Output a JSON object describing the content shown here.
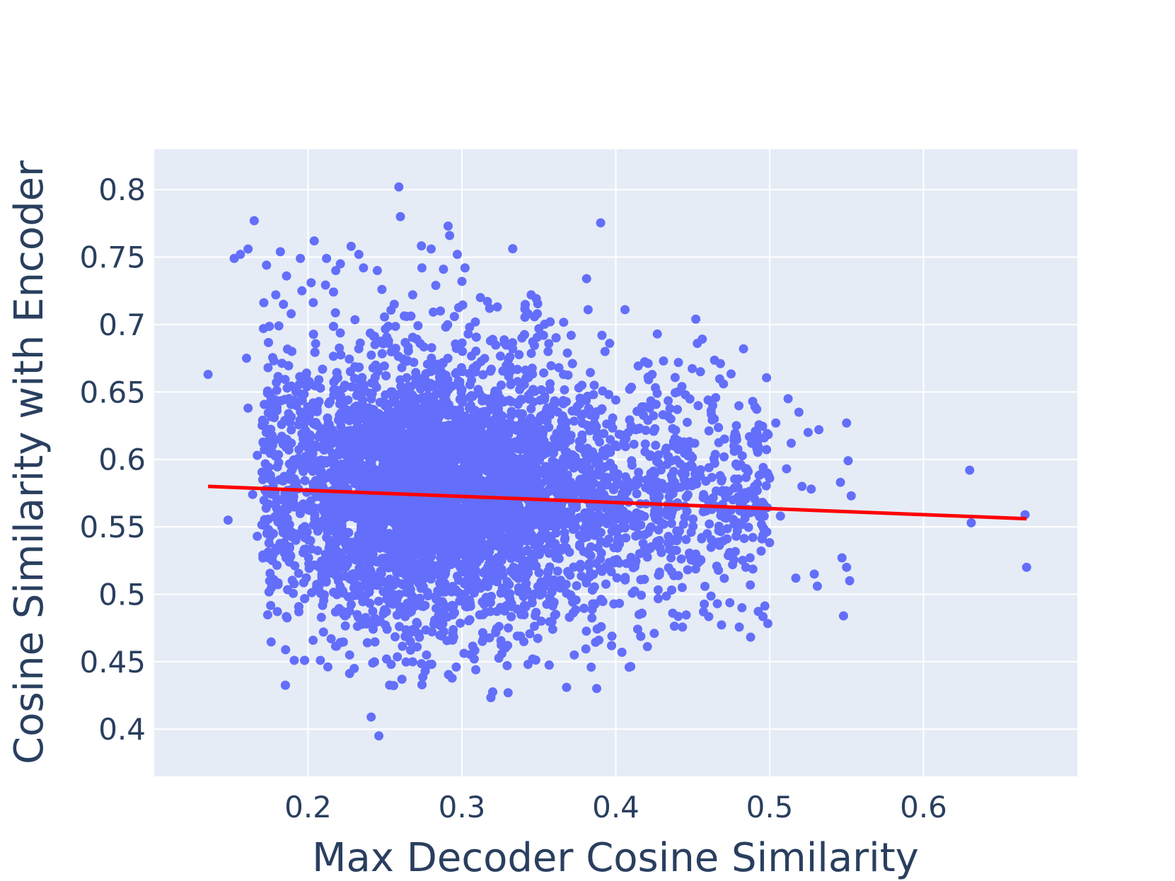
{
  "colors": {
    "plot_background": "#e5ecf6",
    "grid": "#ffffff",
    "points": "#636efa",
    "fit_line": "#ff0000",
    "text": "#2a3f5f"
  },
  "chart_data": {
    "type": "scatter",
    "title": "",
    "xlabel": "Max Decoder Cosine Similarity",
    "ylabel": "Cosine Similarity with Encoder",
    "xlim": [
      0.1,
      0.7
    ],
    "ylim": [
      0.365,
      0.83
    ],
    "grid": true,
    "x_ticks": [
      {
        "value": 0.2,
        "label": "0.2"
      },
      {
        "value": 0.3,
        "label": "0.3"
      },
      {
        "value": 0.4,
        "label": "0.4"
      },
      {
        "value": 0.5,
        "label": "0.5"
      },
      {
        "value": 0.6,
        "label": "0.6"
      }
    ],
    "y_ticks": [
      {
        "value": 0.4,
        "label": "0.4"
      },
      {
        "value": 0.45,
        "label": "0.45"
      },
      {
        "value": 0.5,
        "label": "0.5"
      },
      {
        "value": 0.55,
        "label": "0.55"
      },
      {
        "value": 0.6,
        "label": "0.6"
      },
      {
        "value": 0.65,
        "label": "0.65"
      },
      {
        "value": 0.7,
        "label": "0.7"
      },
      {
        "value": 0.75,
        "label": "0.75"
      },
      {
        "value": 0.8,
        "label": "0.8"
      }
    ],
    "series": [
      {
        "type": "scatter",
        "points": [
          [
            0.135,
            0.663
          ],
          [
            0.148,
            0.555
          ],
          [
            0.152,
            0.749
          ],
          [
            0.156,
            0.752
          ],
          [
            0.161,
            0.756
          ],
          [
            0.165,
            0.777
          ],
          [
            0.16,
            0.675
          ],
          [
            0.161,
            0.638
          ],
          [
            0.164,
            0.574
          ],
          [
            0.167,
            0.603
          ],
          [
            0.167,
            0.543
          ],
          [
            0.171,
            0.697
          ],
          [
            0.173,
            0.744
          ],
          [
            0.174,
            0.668
          ],
          [
            0.176,
            0.64
          ],
          [
            0.178,
            0.631
          ],
          [
            0.179,
            0.722
          ],
          [
            0.181,
            0.699
          ],
          [
            0.182,
            0.754
          ],
          [
            0.184,
            0.715
          ],
          [
            0.186,
            0.736
          ],
          [
            0.189,
            0.708
          ],
          [
            0.191,
            0.451
          ],
          [
            0.194,
            0.487
          ],
          [
            0.195,
            0.749
          ],
          [
            0.196,
            0.725
          ],
          [
            0.199,
            0.664
          ],
          [
            0.202,
            0.731
          ],
          [
            0.204,
            0.762
          ],
          [
            0.208,
            0.451
          ],
          [
            0.21,
            0.472
          ],
          [
            0.212,
            0.749
          ],
          [
            0.215,
            0.467
          ],
          [
            0.218,
            0.74
          ],
          [
            0.221,
            0.745
          ],
          [
            0.224,
            0.484
          ],
          [
            0.227,
            0.455
          ],
          [
            0.228,
            0.758
          ],
          [
            0.23,
            0.445
          ],
          [
            0.233,
            0.752
          ],
          [
            0.236,
            0.742
          ],
          [
            0.238,
            0.478
          ],
          [
            0.241,
            0.409
          ],
          [
            0.242,
            0.449
          ],
          [
            0.245,
            0.74
          ],
          [
            0.246,
            0.395
          ],
          [
            0.248,
            0.726
          ],
          [
            0.251,
            0.452
          ],
          [
            0.254,
            0.448
          ],
          [
            0.256,
            0.715
          ],
          [
            0.259,
            0.802
          ],
          [
            0.26,
            0.78
          ],
          [
            0.261,
            0.437
          ],
          [
            0.264,
            0.706
          ],
          [
            0.266,
            0.494
          ],
          [
            0.268,
            0.722
          ],
          [
            0.271,
            0.478
          ],
          [
            0.274,
            0.742
          ],
          [
            0.277,
            0.455
          ],
          [
            0.28,
            0.756
          ],
          [
            0.283,
            0.729
          ],
          [
            0.286,
            0.71
          ],
          [
            0.288,
            0.741
          ],
          [
            0.291,
            0.773
          ],
          [
            0.292,
            0.766
          ],
          [
            0.294,
            0.466
          ],
          [
            0.297,
            0.752
          ],
          [
            0.3,
            0.732
          ],
          [
            0.302,
            0.742
          ],
          [
            0.305,
            0.698
          ],
          [
            0.308,
            0.452
          ],
          [
            0.309,
            0.444
          ],
          [
            0.312,
            0.72
          ],
          [
            0.314,
            0.467
          ],
          [
            0.318,
            0.712
          ],
          [
            0.32,
            0.689
          ],
          [
            0.323,
            0.713
          ],
          [
            0.326,
            0.456
          ],
          [
            0.33,
            0.427
          ],
          [
            0.333,
            0.682
          ],
          [
            0.336,
            0.469
          ],
          [
            0.339,
            0.69
          ],
          [
            0.343,
            0.708
          ],
          [
            0.345,
            0.722
          ],
          [
            0.349,
            0.708
          ],
          [
            0.35,
            0.697
          ],
          [
            0.353,
            0.692
          ],
          [
            0.356,
            0.68
          ],
          [
            0.359,
            0.474
          ],
          [
            0.363,
            0.668
          ],
          [
            0.366,
            0.663
          ],
          [
            0.368,
            0.431
          ],
          [
            0.371,
            0.692
          ],
          [
            0.373,
            0.455
          ],
          [
            0.376,
            0.653
          ],
          [
            0.378,
            0.655
          ],
          [
            0.381,
            0.734
          ],
          [
            0.382,
            0.711
          ],
          [
            0.384,
            0.446
          ],
          [
            0.386,
            0.655
          ],
          [
            0.389,
            0.466
          ],
          [
            0.391,
            0.692
          ],
          [
            0.393,
            0.68
          ],
          [
            0.396,
            0.686
          ],
          [
            0.4,
            0.644
          ],
          [
            0.404,
            0.457
          ],
          [
            0.406,
            0.711
          ],
          [
            0.409,
            0.652
          ],
          [
            0.413,
            0.622
          ],
          [
            0.417,
            0.639
          ],
          [
            0.421,
            0.661
          ],
          [
            0.425,
            0.471
          ],
          [
            0.427,
            0.693
          ],
          [
            0.431,
            0.673
          ],
          [
            0.434,
            0.632
          ],
          [
            0.437,
            0.486
          ],
          [
            0.44,
            0.637
          ],
          [
            0.443,
            0.654
          ],
          [
            0.446,
            0.612
          ],
          [
            0.449,
            0.546
          ],
          [
            0.452,
            0.704
          ],
          [
            0.453,
            0.686
          ],
          [
            0.455,
            0.665
          ],
          [
            0.457,
            0.487
          ],
          [
            0.46,
            0.644
          ],
          [
            0.463,
            0.64
          ],
          [
            0.466,
            0.493
          ],
          [
            0.468,
            0.671
          ],
          [
            0.47,
            0.656
          ],
          [
            0.474,
            0.531
          ],
          [
            0.477,
            0.606
          ],
          [
            0.479,
            0.547
          ],
          [
            0.482,
            0.49
          ],
          [
            0.483,
            0.682
          ],
          [
            0.486,
            0.591
          ],
          [
            0.489,
            0.643
          ],
          [
            0.492,
            0.612
          ],
          [
            0.496,
            0.549
          ],
          [
            0.5,
            0.586
          ],
          [
            0.504,
            0.627
          ],
          [
            0.507,
            0.558
          ],
          [
            0.511,
            0.593
          ],
          [
            0.512,
            0.645
          ],
          [
            0.514,
            0.612
          ],
          [
            0.517,
            0.512
          ],
          [
            0.519,
            0.635
          ],
          [
            0.521,
            0.58
          ],
          [
            0.525,
            0.62
          ],
          [
            0.527,
            0.578
          ],
          [
            0.529,
            0.515
          ],
          [
            0.531,
            0.506
          ],
          [
            0.532,
            0.622
          ],
          [
            0.546,
            0.583
          ],
          [
            0.547,
            0.527
          ],
          [
            0.548,
            0.484
          ],
          [
            0.55,
            0.52
          ],
          [
            0.55,
            0.627
          ],
          [
            0.551,
            0.599
          ],
          [
            0.552,
            0.51
          ],
          [
            0.553,
            0.573
          ],
          [
            0.63,
            0.592
          ],
          [
            0.631,
            0.553
          ],
          [
            0.666,
            0.559
          ],
          [
            0.667,
            0.52
          ]
        ]
      },
      {
        "type": "line",
        "x": [
          0.135,
          0.667
        ],
        "y": [
          0.58,
          0.556
        ]
      }
    ]
  }
}
